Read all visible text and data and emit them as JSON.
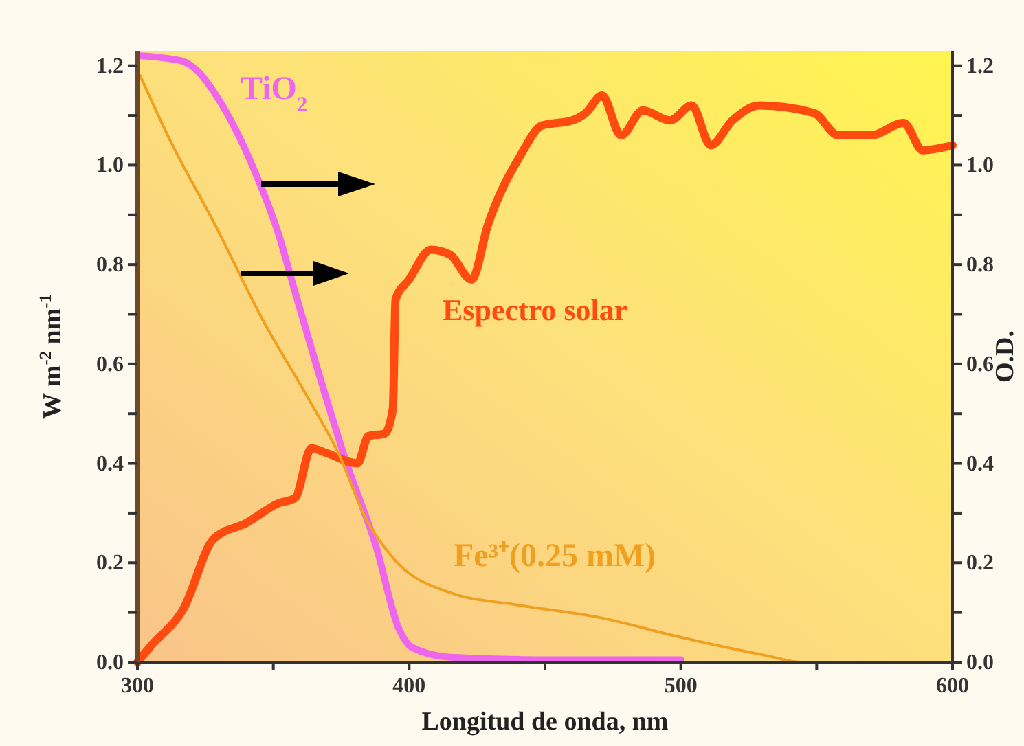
{
  "chart_data": {
    "type": "line",
    "xlabel": "Longitud de onda, nm",
    "ylabel": "W m$^{-2}$ nm$^{-1}$",
    "y2label": "O.D.",
    "xlim": [
      300,
      600
    ],
    "ylim": [
      0,
      1.23
    ],
    "y2lim": [
      0,
      1.23
    ],
    "xticks": [
      300,
      {
        "value": 350,
        "label": null
      },
      400,
      {
        "value": 450,
        "label": null
      },
      500,
      {
        "value": 550,
        "label": null
      },
      600
    ],
    "yticks": [
      {
        "value": 0,
        "label": "0.0"
      },
      {
        "value": 0.1,
        "label": null
      },
      {
        "value": 0.2,
        "label": "0.2"
      },
      {
        "value": 0.3,
        "label": null
      },
      {
        "value": 0.4,
        "label": "0.4"
      },
      {
        "value": 0.5,
        "label": null
      },
      {
        "value": 0.6,
        "label": "0.6"
      },
      {
        "value": 0.7,
        "label": null
      },
      {
        "value": 0.8,
        "label": "0.8"
      },
      {
        "value": 0.9,
        "label": null
      },
      {
        "value": 1.0,
        "label": "1.0"
      },
      {
        "value": 1.1,
        "label": null
      },
      {
        "value": 1.2,
        "label": "1.2"
      }
    ],
    "y2ticks": [
      {
        "value": 0,
        "label": "0.0"
      },
      {
        "value": 0.1,
        "label": null
      },
      {
        "value": 0.2,
        "label": "0.2"
      },
      {
        "value": 0.3,
        "label": null
      },
      {
        "value": 0.4,
        "label": "0.4"
      },
      {
        "value": 0.5,
        "label": null
      },
      {
        "value": 0.6,
        "label": "0.6"
      },
      {
        "value": 0.7,
        "label": null
      },
      {
        "value": 0.8,
        "label": "0.8"
      },
      {
        "value": 0.9,
        "label": null
      },
      {
        "value": 1.0,
        "label": "1.0"
      },
      {
        "value": 1.1,
        "label": null
      },
      {
        "value": 1.2,
        "label": "1.2"
      }
    ],
    "grid": false,
    "marker": "none",
    "line_style": "solid",
    "series": [
      {
        "name": "TiO$_{2}$",
        "color": "#ee66ee",
        "x": [
          301,
          316,
          322,
          329,
          343,
          352,
          358,
          369,
          377,
          388,
          396,
          401,
          415,
          450,
          500
        ],
        "values": [
          1.22,
          1.21,
          1.19,
          1.14,
          0.99,
          0.86,
          0.745,
          0.54,
          0.4,
          0.23,
          0.07,
          0.03,
          0.01,
          0.005,
          0.005
        ]
      },
      {
        "name": "Espectro solar",
        "color": "#ff4a10",
        "x": [
          300,
          305,
          317,
          328,
          340,
          352,
          358,
          364,
          370,
          381,
          385,
          391,
          394,
          395,
          400,
          408,
          415,
          423,
          429,
          441,
          449,
          460,
          465,
          471,
          478,
          486,
          496,
          504,
          511,
          519,
          529,
          549,
          558,
          570,
          582,
          589,
          600
        ],
        "values": [
          0,
          0.033,
          0.108,
          0.248,
          0.28,
          0.32,
          0.33,
          0.43,
          0.42,
          0.4,
          0.455,
          0.46,
          0.51,
          0.73,
          0.77,
          0.83,
          0.82,
          0.77,
          0.88,
          1.02,
          1.08,
          1.09,
          1.105,
          1.14,
          1.06,
          1.11,
          1.09,
          1.12,
          1.04,
          1.09,
          1.12,
          1.105,
          1.06,
          1.06,
          1.085,
          1.03,
          1.04
        ]
      },
      {
        "name": "Fe³⁺(0.25 mM)",
        "color": "#f0a020",
        "x": [
          301,
          312,
          328,
          346,
          364,
          374,
          384,
          394,
          415,
          440,
          470,
          500,
          530,
          545,
          600
        ],
        "values": [
          1.18,
          1.05,
          0.886,
          0.69,
          0.52,
          0.42,
          0.29,
          0.21,
          0.14,
          0.115,
          0.09,
          0.05,
          0.015,
          0.0,
          0.0
        ]
      }
    ]
  }
}
